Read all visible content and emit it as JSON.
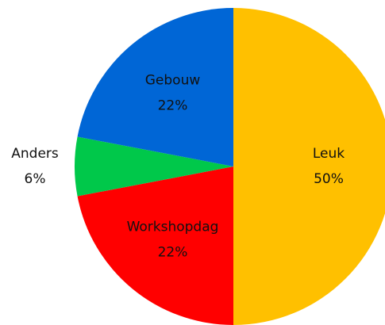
{
  "chart_data": {
    "type": "pie",
    "categories": [
      "Leuk",
      "Workshopdag",
      "Anders",
      "Gebouw"
    ],
    "values": [
      50,
      22,
      6,
      22
    ],
    "value_labels": [
      "50%",
      "22%",
      "6%",
      "22%"
    ],
    "colors": [
      "#ffc000",
      "#ff0000",
      "#00c84a",
      "#0066d6"
    ]
  }
}
